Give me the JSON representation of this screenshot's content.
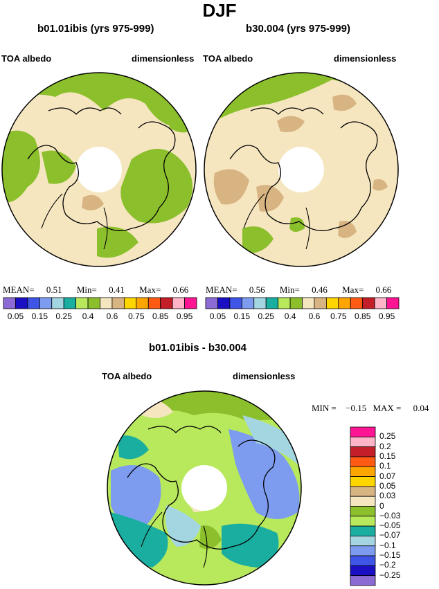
{
  "title": "DJF",
  "panels": [
    {
      "title": "b01.01ibis (yrs 975-999)",
      "left_label": "TOA albedo",
      "right_label": "dimensionless",
      "stats": {
        "mean_label": "MEAN=",
        "mean": "0.51",
        "min_label": "Min=",
        "min": "0.41",
        "max_label": "Max=",
        "max": "0.66"
      }
    },
    {
      "title": "b30.004 (yrs 975-999)",
      "left_label": "TOA albedo",
      "right_label": "dimensionless",
      "stats": {
        "mean_label": "MEAN=",
        "mean": "0.56",
        "min_label": "Min=",
        "min": "0.46",
        "max_label": "Max=",
        "max": "0.66"
      }
    }
  ],
  "colorbar": {
    "colors": [
      "#8c6bd4",
      "#1a0fc2",
      "#3e55e6",
      "#7d9cf0",
      "#a4d6e2",
      "#1aaea0",
      "#b8e85c",
      "#8cbf2c",
      "#f5e6c0",
      "#d9b483",
      "#ffd500",
      "#ffa500",
      "#ff5a14",
      "#c41e28",
      "#ffb4c8",
      "#ff1493"
    ],
    "labels": [
      "0.05",
      "0.15",
      "0.25",
      "0.4",
      "0.6",
      "0.75",
      "0.85",
      "0.95"
    ]
  },
  "diff": {
    "title": "b01.01ibis - b30.004",
    "left_label": "TOA albedo",
    "right_label": "dimensionless",
    "stats": {
      "min_label": "MIN =",
      "min": "−0.15",
      "max_label": "MAX =",
      "max": "0.04"
    },
    "colorbar": {
      "colors": [
        "#ff1493",
        "#ffb4c8",
        "#c41e28",
        "#ff5a14",
        "#ffa500",
        "#ffd500",
        "#d9b483",
        "#f5e6c0",
        "#8cbf2c",
        "#b8e85c",
        "#1aaea0",
        "#a4d6e2",
        "#7d9cf0",
        "#3e55e6",
        "#1a0fc2",
        "#8c6bd4"
      ],
      "labels": [
        "0.25",
        "0.2",
        "0.15",
        "0.1",
        "0.07",
        "0.05",
        "0.03",
        "0",
        "−0.03",
        "−0.05",
        "−0.07",
        "−0.1",
        "−0.15",
        "−0.2",
        "−0.25"
      ]
    }
  }
}
